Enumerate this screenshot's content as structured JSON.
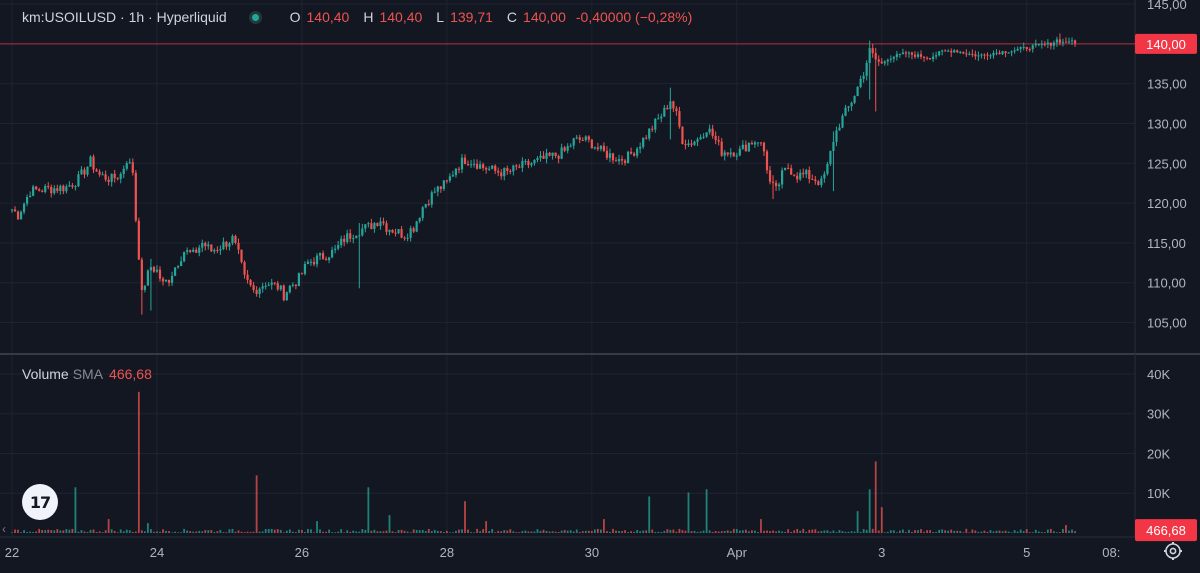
{
  "legend": {
    "symbol": "km:USOILUSD · 1h · Hyperliquid",
    "open_label": "O",
    "open": "140,40",
    "high_label": "H",
    "high": "140,40",
    "low_label": "L",
    "low": "139,71",
    "close_label": "C",
    "close": "140,00",
    "change": "-0,40000 (−0,28%)"
  },
  "volume_legend": {
    "title": "Volume",
    "sma_label": "SMA",
    "sma_value": "466,68"
  },
  "logo_text": "17",
  "chart_data": {
    "type": "candlestick",
    "price_axis": {
      "ticks": [
        105,
        110,
        115,
        120,
        125,
        130,
        135,
        140,
        145
      ],
      "tick_labels": [
        "105,00",
        "110,00",
        "115,00",
        "120,00",
        "125,00",
        "130,00",
        "135,00",
        "140,00",
        "145,00"
      ],
      "range": [
        101.3,
        145
      ],
      "last_price": 140.0,
      "last_price_label": "140,00"
    },
    "volume_axis": {
      "ticks": [
        10000,
        20000,
        30000,
        40000
      ],
      "tick_labels": [
        "10K",
        "20K",
        "30K",
        "40K"
      ],
      "range": [
        0,
        41500
      ],
      "last_label": "466,68"
    },
    "x_axis": {
      "labels": [
        "22",
        "24",
        "26",
        "28",
        "30",
        "Apr",
        "3",
        "5",
        "08:"
      ],
      "positions_hours": [
        0,
        48,
        96,
        144,
        192,
        240,
        288,
        336,
        364
      ]
    },
    "colors": {
      "up": "#26a69a",
      "down": "#ef5350",
      "background": "#131722",
      "grid": "#1f2330",
      "text": "#d1d4dc",
      "last_price": "#f23645"
    },
    "close_path": [
      [
        0,
        119.2
      ],
      [
        2,
        118.5
      ],
      [
        6,
        121.5
      ],
      [
        12,
        121.8
      ],
      [
        18,
        122.0
      ],
      [
        22,
        123.0
      ],
      [
        26,
        125.2
      ],
      [
        29,
        123.5
      ],
      [
        33,
        123.0
      ],
      [
        36,
        123.6
      ],
      [
        38,
        125.5
      ],
      [
        40,
        124.0
      ],
      [
        41,
        118.0
      ],
      [
        42,
        113.5
      ],
      [
        43,
        108.5
      ],
      [
        44,
        110.0
      ],
      [
        46,
        112.0
      ],
      [
        48,
        111.5
      ],
      [
        50,
        109.8
      ],
      [
        52,
        110.5
      ],
      [
        54,
        112.0
      ],
      [
        57,
        114.0
      ],
      [
        60,
        113.5
      ],
      [
        63,
        115.0
      ],
      [
        66,
        114.0
      ],
      [
        70,
        114.8
      ],
      [
        73,
        115.5
      ],
      [
        75,
        113.5
      ],
      [
        77,
        110.5
      ],
      [
        80,
        109.0
      ],
      [
        84,
        110.0
      ],
      [
        88,
        109.5
      ],
      [
        90,
        108.5
      ],
      [
        92,
        109.5
      ],
      [
        95,
        110.5
      ],
      [
        98,
        112.5
      ],
      [
        101,
        113.0
      ],
      [
        104,
        113.5
      ],
      [
        107,
        114.0
      ],
      [
        110,
        115.5
      ],
      [
        114,
        116.5
      ],
      [
        118,
        117.0
      ],
      [
        122,
        118.0
      ],
      [
        124,
        117.0
      ],
      [
        127,
        116.5
      ],
      [
        130,
        116.0
      ],
      [
        133,
        117.0
      ],
      [
        136,
        119.5
      ],
      [
        140,
        121.5
      ],
      [
        144,
        122.5
      ],
      [
        147,
        124.5
      ],
      [
        150,
        125.5
      ],
      [
        153,
        125.2
      ],
      [
        156,
        124.5
      ],
      [
        160,
        124.0
      ],
      [
        164,
        123.8
      ],
      [
        168,
        124.5
      ],
      [
        172,
        125.0
      ],
      [
        176,
        125.5
      ],
      [
        180,
        126.0
      ],
      [
        183,
        126.5
      ],
      [
        186,
        127.8
      ],
      [
        189,
        128.0
      ],
      [
        192,
        127.5
      ],
      [
        195,
        126.5
      ],
      [
        198,
        126.0
      ],
      [
        201,
        125.5
      ],
      [
        204,
        125.8
      ],
      [
        207,
        127.0
      ],
      [
        210,
        128.5
      ],
      [
        213,
        130.0
      ],
      [
        216,
        131.5
      ],
      [
        218,
        133.0
      ],
      [
        220,
        131.0
      ],
      [
        222,
        128.0
      ],
      [
        224,
        127.5
      ],
      [
        227,
        128.0
      ],
      [
        230,
        129.5
      ],
      [
        232,
        128.5
      ],
      [
        235,
        126.5
      ],
      [
        238,
        126.5
      ],
      [
        241,
        126.5
      ],
      [
        244,
        127.5
      ],
      [
        247,
        128.0
      ],
      [
        249,
        126.5
      ],
      [
        251,
        122.5
      ],
      [
        253,
        121.5
      ],
      [
        255,
        123.5
      ],
      [
        257,
        124.5
      ],
      [
        260,
        123.5
      ],
      [
        263,
        123.5
      ],
      [
        266,
        123.0
      ],
      [
        268,
        122.5
      ],
      [
        270,
        124.5
      ],
      [
        272,
        128.0
      ],
      [
        274,
        130.0
      ],
      [
        277,
        132.0
      ],
      [
        280,
        134.5
      ],
      [
        282,
        136.5
      ],
      [
        284,
        139.0
      ],
      [
        286,
        138.0
      ],
      [
        288,
        137.5
      ],
      [
        290,
        138.2
      ],
      [
        293,
        138.5
      ],
      [
        296,
        138.8
      ],
      [
        300,
        138.5
      ],
      [
        304,
        138.3
      ],
      [
        308,
        139.0
      ],
      [
        312,
        139.2
      ],
      [
        316,
        138.8
      ],
      [
        320,
        138.5
      ],
      [
        324,
        138.8
      ],
      [
        328,
        139.0
      ],
      [
        332,
        139.2
      ],
      [
        336,
        139.5
      ],
      [
        340,
        139.8
      ],
      [
        344,
        140.0
      ],
      [
        346,
        140.5
      ],
      [
        348,
        140.2
      ],
      [
        350,
        140.4
      ],
      [
        352,
        140.0
      ]
    ],
    "wicks": [
      {
        "hour": 43,
        "low": 106.0,
        "high": 110.0
      },
      {
        "hour": 46,
        "low": 106.5,
        "high": 113.0
      },
      {
        "hour": 115,
        "low": 109.3,
        "high": 117.5
      },
      {
        "hour": 218,
        "low": 128.0,
        "high": 134.5
      },
      {
        "hour": 252,
        "low": 120.5,
        "high": 123.5
      },
      {
        "hour": 272,
        "low": 121.5,
        "high": 129.0
      },
      {
        "hour": 284,
        "low": 133.0,
        "high": 140.4
      },
      {
        "hour": 286,
        "low": 131.5,
        "high": 139.5
      },
      {
        "hour": 347,
        "low": 139.8,
        "high": 141.3
      }
    ],
    "volume_spikes": [
      {
        "hour": 21,
        "value": 11500
      },
      {
        "hour": 32,
        "value": 3500
      },
      {
        "hour": 42,
        "value": 35500
      },
      {
        "hour": 45,
        "value": 2500
      },
      {
        "hour": 81,
        "value": 14500
      },
      {
        "hour": 101,
        "value": 3000
      },
      {
        "hour": 118,
        "value": 11500
      },
      {
        "hour": 125,
        "value": 4500
      },
      {
        "hour": 150,
        "value": 8000
      },
      {
        "hour": 157,
        "value": 3000
      },
      {
        "hour": 196,
        "value": 3500
      },
      {
        "hour": 211,
        "value": 9200
      },
      {
        "hour": 224,
        "value": 10200
      },
      {
        "hour": 230,
        "value": 11000
      },
      {
        "hour": 248,
        "value": 3500
      },
      {
        "hour": 280,
        "value": 5500
      },
      {
        "hour": 284,
        "value": 11000
      },
      {
        "hour": 286,
        "value": 18000
      },
      {
        "hour": 288,
        "value": 6500
      },
      {
        "hour": 349,
        "value": 2000
      }
    ]
  }
}
